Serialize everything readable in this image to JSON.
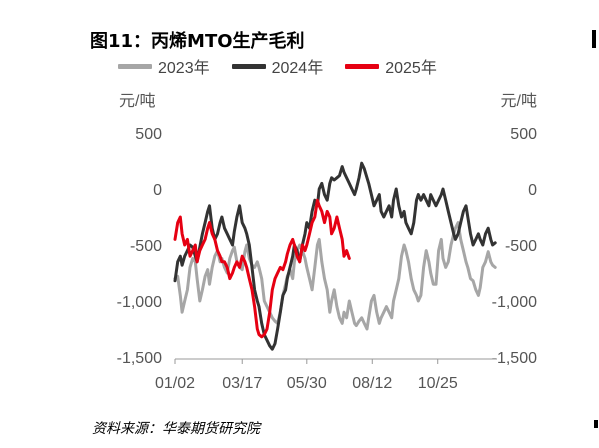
{
  "chart_data": {
    "type": "line",
    "title": "图11：丙烯MTO生产毛利",
    "source": "资料来源：华泰期货研究院",
    "ylabel_left": "元/吨",
    "ylabel_right": "元/吨",
    "ylim": [
      -1500,
      500
    ],
    "yticks": [
      500,
      0,
      -500,
      -1000,
      -1500
    ],
    "ytick_labels": [
      "500",
      "0",
      "-500",
      "-1,000",
      "-1,500"
    ],
    "xlim": [
      1,
      365
    ],
    "xticks": [
      1,
      77,
      150,
      224,
      298
    ],
    "xtick_labels": [
      "01/02",
      "03/17",
      "05/30",
      "08/12",
      "10/25"
    ],
    "grid": false,
    "legend_position": "top",
    "series": [
      {
        "name": "2023年",
        "color": "#a6a6a6",
        "x": [
          1,
          4,
          7,
          9,
          12,
          15,
          18,
          21,
          24,
          26,
          29,
          32,
          35,
          38,
          40,
          43,
          46,
          49,
          52,
          54,
          57,
          60,
          63,
          66,
          68,
          71,
          74,
          77,
          80,
          82,
          85,
          88,
          91,
          94,
          96,
          99,
          102,
          105,
          108,
          111,
          114,
          117,
          120,
          123,
          126,
          128,
          131,
          134,
          136,
          139,
          142,
          145,
          148,
          150,
          153,
          156,
          159,
          162,
          164,
          167,
          170,
          173,
          176,
          178,
          181,
          184,
          187,
          190,
          192,
          195,
          198,
          201,
          204,
          206,
          209,
          212,
          215,
          218,
          220,
          223,
          226,
          229,
          232,
          234,
          237,
          240,
          243,
          246,
          248,
          251,
          254,
          257,
          260,
          262,
          265,
          268,
          271,
          274,
          276,
          279,
          282,
          285,
          288,
          290,
          293,
          296,
          299,
          302,
          304,
          307,
          310,
          313,
          316,
          318,
          321,
          324,
          327,
          330,
          332,
          335,
          338,
          341,
          344,
          346,
          349,
          352,
          355,
          358,
          360,
          363
        ],
        "values": [
          -800,
          -780,
          -950,
          -1100,
          -1000,
          -900,
          -700,
          -620,
          -650,
          -800,
          -1000,
          -900,
          -780,
          -720,
          -850,
          -700,
          -600,
          -550,
          -650,
          -620,
          -700,
          -750,
          -620,
          -550,
          -520,
          -650,
          -700,
          -720,
          -560,
          -500,
          -620,
          -680,
          -700,
          -650,
          -700,
          -800,
          -1000,
          -1050,
          -1100,
          -1150,
          -1180,
          -1200,
          -1100,
          -950,
          -850,
          -780,
          -720,
          -800,
          -650,
          -550,
          -500,
          -550,
          -620,
          -700,
          -800,
          -900,
          -700,
          -500,
          -450,
          -650,
          -800,
          -900,
          -1100,
          -1000,
          -900,
          -1050,
          -1150,
          -1200,
          -1100,
          -1150,
          -1000,
          -1100,
          -1200,
          -1220,
          -1180,
          -1150,
          -1200,
          -1250,
          -1150,
          -1000,
          -950,
          -1100,
          -1200,
          -1150,
          -1100,
          -1050,
          -1100,
          -1150,
          -1000,
          -900,
          -800,
          -600,
          -500,
          -550,
          -650,
          -800,
          -900,
          -950,
          -1000,
          -950,
          -700,
          -550,
          -650,
          -750,
          -850,
          -850,
          -550,
          -450,
          -620,
          -700,
          -650,
          -500,
          -400,
          -350,
          -300,
          -450,
          -550,
          -650,
          -700,
          -800,
          -820,
          -900,
          -950,
          -880,
          -700,
          -650,
          -560,
          -650,
          -680,
          -700
        ]
      },
      {
        "name": "2024年",
        "color": "#333333",
        "x": [
          1,
          4,
          7,
          9,
          12,
          15,
          18,
          21,
          24,
          26,
          29,
          32,
          35,
          38,
          40,
          43,
          46,
          49,
          52,
          54,
          57,
          60,
          63,
          66,
          68,
          71,
          74,
          77,
          80,
          82,
          85,
          88,
          91,
          94,
          96,
          99,
          102,
          105,
          108,
          111,
          114,
          117,
          120,
          123,
          126,
          128,
          131,
          134,
          136,
          139,
          142,
          145,
          148,
          150,
          153,
          156,
          159,
          162,
          164,
          167,
          170,
          173,
          176,
          178,
          181,
          184,
          187,
          190,
          192,
          195,
          198,
          201,
          204,
          206,
          209,
          212,
          215,
          218,
          220,
          223,
          226,
          229,
          232,
          234,
          237,
          240,
          243,
          246,
          248,
          251,
          254,
          257,
          260,
          262,
          265,
          268,
          271,
          274,
          276,
          279,
          282,
          285,
          288,
          290,
          293,
          296,
          299,
          302,
          304,
          307,
          310,
          313,
          316,
          318,
          321,
          324,
          327,
          330,
          332,
          335,
          338,
          341,
          344,
          346,
          349,
          352,
          355,
          358,
          360,
          363
        ],
        "values": [
          -820,
          -650,
          -600,
          -680,
          -600,
          -550,
          -500,
          -520,
          -600,
          -650,
          -520,
          -400,
          -300,
          -200,
          -150,
          -350,
          -450,
          -400,
          -300,
          -250,
          -350,
          -400,
          -450,
          -500,
          -380,
          -250,
          -150,
          -300,
          -350,
          -400,
          -500,
          -700,
          -900,
          -1000,
          -1050,
          -1200,
          -1300,
          -1350,
          -1400,
          -1430,
          -1380,
          -1250,
          -1100,
          -950,
          -900,
          -800,
          -700,
          -600,
          -500,
          -550,
          -650,
          -500,
          -400,
          -300,
          -350,
          -200,
          -100,
          -150,
          0,
          50,
          -50,
          -100,
          50,
          100,
          80,
          100,
          120,
          200,
          150,
          100,
          50,
          0,
          -50,
          0,
          100,
          230,
          180,
          100,
          50,
          -50,
          -150,
          -100,
          -50,
          -200,
          -250,
          -200,
          -150,
          -250,
          -100,
          0,
          -150,
          -250,
          -200,
          -300,
          -350,
          -400,
          -300,
          -100,
          -50,
          -100,
          -50,
          -100,
          -150,
          -50,
          -100,
          -150,
          -100,
          -50,
          0,
          -100,
          -200,
          -300,
          -400,
          -450,
          -400,
          -300,
          -200,
          -150,
          -250,
          -400,
          -500,
          -450,
          -400,
          -450,
          -500,
          -400,
          -350,
          -450,
          -500,
          -480
        ]
      },
      {
        "name": "2025年",
        "color": "#e60012",
        "x": [
          1,
          4,
          7,
          9,
          12,
          15,
          18,
          21,
          24,
          26,
          29,
          32,
          35,
          38,
          40,
          43,
          46,
          49,
          52,
          54,
          57,
          60,
          63,
          66,
          68,
          71,
          74,
          77,
          80,
          82,
          85,
          88,
          91,
          94,
          96,
          99,
          102,
          105,
          108,
          111,
          114,
          117,
          120,
          123,
          126,
          128,
          131,
          134,
          136,
          139,
          142,
          145,
          148,
          150,
          153,
          156,
          159,
          162,
          164,
          167,
          170,
          173,
          176,
          178,
          181,
          184,
          187,
          190,
          192,
          195,
          198
        ],
        "values": [
          -450,
          -300,
          -250,
          -400,
          -500,
          -450,
          -600,
          -550,
          -500,
          -650,
          -550,
          -500,
          -450,
          -350,
          -300,
          -400,
          -450,
          -550,
          -600,
          -650,
          -650,
          -700,
          -800,
          -750,
          -700,
          -650,
          -700,
          -600,
          -650,
          -700,
          -800,
          -900,
          -1050,
          -1250,
          -1300,
          -1320,
          -1300,
          -1250,
          -1100,
          -900,
          -800,
          -750,
          -700,
          -720,
          -650,
          -580,
          -500,
          -450,
          -500,
          -600,
          -650,
          -500,
          -550,
          -500,
          -400,
          -300,
          -250,
          -100,
          -150,
          -200,
          -300,
          -200,
          -250,
          -400,
          -350,
          -250,
          -350,
          -450,
          -600,
          -550,
          -620
        ]
      }
    ]
  }
}
